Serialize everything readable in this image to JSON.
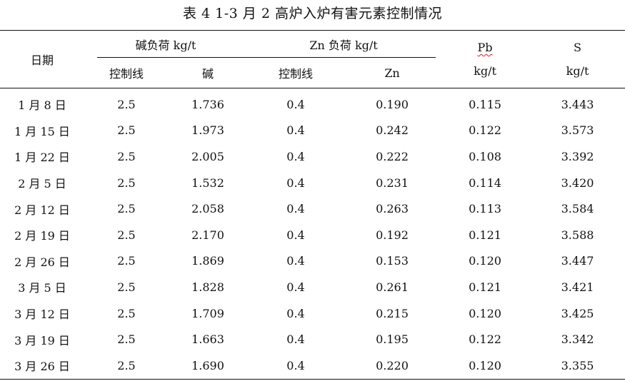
{
  "caption": "表 4 1-3 月 2 高炉入炉有害元素控制情况",
  "header": {
    "date": "日期",
    "alkali_group": "碱负荷 kg/t",
    "zn_group": "Zn 负荷 kg/t",
    "alkali_control": "控制线",
    "alkali_value": "碱",
    "zn_control": "控制线",
    "zn_value": "Zn",
    "pb_name": "Pb",
    "pb_unit": "kg/t",
    "s_name": "S",
    "s_unit": "kg/t"
  },
  "rows": [
    {
      "date": "1 月 8 日",
      "alk_ctrl": "2.5",
      "alk": "1.736",
      "zn_ctrl": "0.4",
      "zn": "0.190",
      "pb": "0.115",
      "s": "3.443"
    },
    {
      "date": "1 月 15 日",
      "alk_ctrl": "2.5",
      "alk": "1.973",
      "zn_ctrl": "0.4",
      "zn": "0.242",
      "pb": "0.122",
      "s": "3.573"
    },
    {
      "date": "1 月 22 日",
      "alk_ctrl": "2.5",
      "alk": "2.005",
      "zn_ctrl": "0.4",
      "zn": "0.222",
      "pb": "0.108",
      "s": "3.392"
    },
    {
      "date": "2 月 5 日",
      "alk_ctrl": "2.5",
      "alk": "1.532",
      "zn_ctrl": "0.4",
      "zn": "0.231",
      "pb": "0.114",
      "s": "3.420"
    },
    {
      "date": "2 月 12 日",
      "alk_ctrl": "2.5",
      "alk": "2.058",
      "zn_ctrl": "0.4",
      "zn": "0.263",
      "pb": "0.113",
      "s": "3.584"
    },
    {
      "date": "2 月 19 日",
      "alk_ctrl": "2.5",
      "alk": "2.170",
      "zn_ctrl": "0.4",
      "zn": "0.192",
      "pb": "0.121",
      "s": "3.588"
    },
    {
      "date": "2 月 26 日",
      "alk_ctrl": "2.5",
      "alk": "1.869",
      "zn_ctrl": "0.4",
      "zn": "0.153",
      "pb": "0.120",
      "s": "3.447"
    },
    {
      "date": "3 月 5 日",
      "alk_ctrl": "2.5",
      "alk": "1.828",
      "zn_ctrl": "0.4",
      "zn": "0.261",
      "pb": "0.121",
      "s": "3.421"
    },
    {
      "date": "3 月 12 日",
      "alk_ctrl": "2.5",
      "alk": "1.709",
      "zn_ctrl": "0.4",
      "zn": "0.215",
      "pb": "0.120",
      "s": "3.425"
    },
    {
      "date": "3 月 19 日",
      "alk_ctrl": "2.5",
      "alk": "1.663",
      "zn_ctrl": "0.4",
      "zn": "0.195",
      "pb": "0.122",
      "s": "3.342"
    },
    {
      "date": "3 月 26 日",
      "alk_ctrl": "2.5",
      "alk": "1.690",
      "zn_ctrl": "0.4",
      "zn": "0.220",
      "pb": "0.120",
      "s": "3.355"
    }
  ]
}
